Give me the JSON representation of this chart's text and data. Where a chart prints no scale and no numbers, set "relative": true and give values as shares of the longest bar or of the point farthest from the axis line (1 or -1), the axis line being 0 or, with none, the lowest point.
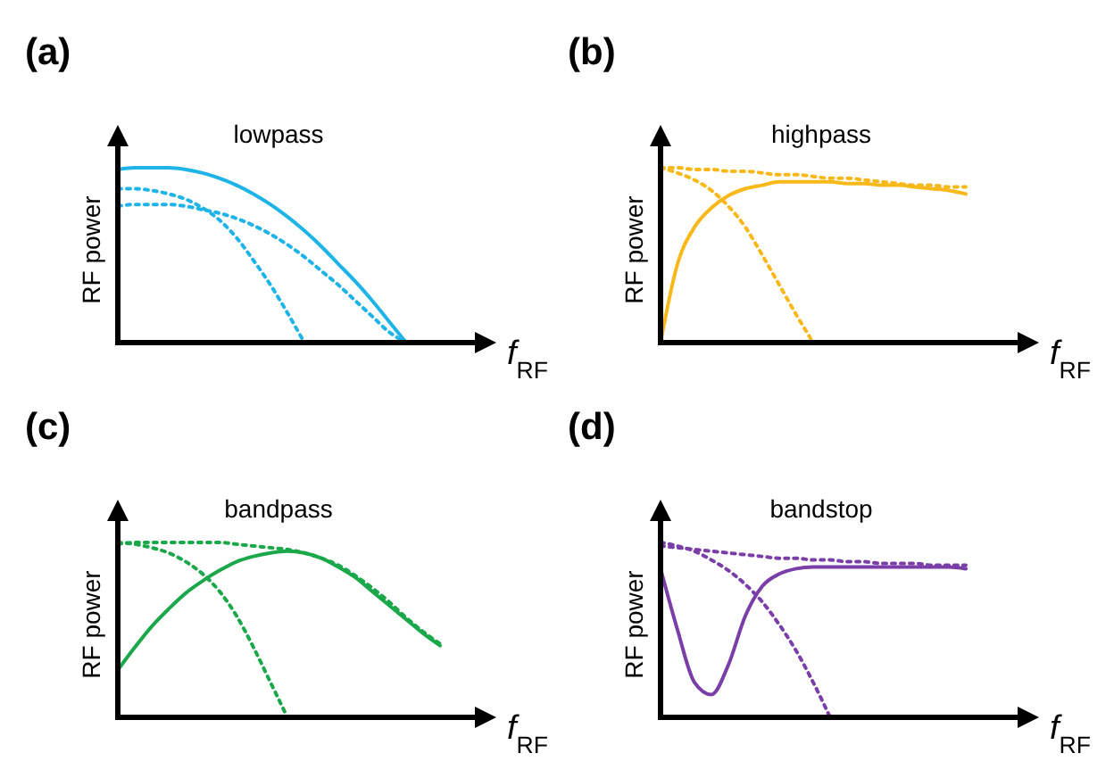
{
  "chart_data": [
    {
      "type": "line",
      "title": "lowpass",
      "xlabel": "f$_{RF}$",
      "ylabel": "RF power",
      "relative": true,
      "annotations": [
        "(a)"
      ],
      "categories": [
        null,
        null,
        null,
        null,
        null,
        null,
        null,
        null,
        null,
        null,
        null,
        null,
        null,
        null,
        null,
        null,
        null,
        null,
        null,
        null,
        null
      ],
      "series": [
        {
          "color": "#1fb4e8",
          "line_style": "solid",
          "values": [
            0.99,
            1,
            1,
            1,
            0.99,
            0.97,
            0.94,
            0.9,
            0.85,
            0.79,
            0.72,
            0.64,
            0.55,
            0.45,
            0.35,
            0.24,
            0.12,
            0,
            null,
            null,
            null
          ]
        },
        {
          "color": "#1fb4e8",
          "line_style": "dotted",
          "values": [
            0.88,
            0.88,
            0.87,
            0.85,
            0.82,
            0.77,
            0.7,
            0.6,
            0.47,
            0.33,
            0.17,
            0,
            null,
            null,
            null,
            null,
            null,
            null,
            null,
            null,
            null
          ]
        },
        {
          "color": "#1fb4e8",
          "line_style": "dotted",
          "values": [
            0.78,
            0.79,
            0.79,
            0.79,
            0.78,
            0.76,
            0.74,
            0.71,
            0.67,
            0.62,
            0.56,
            0.49,
            0.41,
            0.33,
            0.24,
            0.15,
            0.06,
            0,
            null,
            null,
            null
          ]
        }
      ]
    },
    {
      "type": "line",
      "title": "highpass",
      "xlabel": "f$_{RF}$",
      "ylabel": "RF power",
      "relative": true,
      "annotations": [
        "(b)"
      ],
      "categories": [
        null,
        null,
        null,
        null,
        null,
        null,
        null,
        null,
        null,
        null,
        null,
        null,
        null,
        null,
        null,
        null,
        null,
        null,
        null,
        null,
        null
      ],
      "series": [
        {
          "color": "#f7b81a",
          "line_style": "solid",
          "values": [
            0,
            0.45,
            0.66,
            0.77,
            0.84,
            0.88,
            0.9,
            0.92,
            0.92,
            0.92,
            0.92,
            0.91,
            0.91,
            0.9,
            0.9,
            0.89,
            0.88,
            0.87,
            0.85,
            null,
            null
          ]
        },
        {
          "color": "#f7b81a",
          "line_style": "dotted",
          "values": [
            1,
            0.97,
            0.93,
            0.87,
            0.78,
            0.66,
            0.5,
            0.33,
            0.16,
            0,
            null,
            null,
            null,
            null,
            null,
            null,
            null,
            null,
            null,
            null,
            null
          ]
        },
        {
          "color": "#f7b81a",
          "line_style": "dotted",
          "values": [
            1,
            1,
            0.99,
            0.99,
            0.98,
            0.98,
            0.97,
            0.96,
            0.96,
            0.95,
            0.94,
            0.94,
            0.93,
            0.92,
            0.91,
            0.9,
            0.9,
            0.89,
            0.89,
            null,
            null
          ]
        }
      ]
    },
    {
      "type": "line",
      "title": "bandpass",
      "xlabel": "f$_{RF}$",
      "ylabel": "RF power",
      "relative": true,
      "annotations": [
        "(c)"
      ],
      "categories": [
        null,
        null,
        null,
        null,
        null,
        null,
        null,
        null,
        null,
        null,
        null,
        null,
        null,
        null,
        null,
        null,
        null,
        null,
        null,
        null,
        null
      ],
      "series": [
        {
          "color": "#1aa84a",
          "line_style": "solid",
          "values": [
            0.27,
            0.4,
            0.52,
            0.62,
            0.71,
            0.78,
            0.84,
            0.89,
            0.92,
            0.94,
            0.95,
            0.94,
            0.91,
            0.86,
            0.8,
            0.72,
            0.64,
            0.56,
            0.48,
            0.41,
            null
          ]
        },
        {
          "color": "#1aa84a",
          "line_style": "dotted",
          "values": [
            1,
            0.99,
            0.97,
            0.94,
            0.89,
            0.82,
            0.72,
            0.58,
            0.4,
            0.2,
            0,
            null,
            null,
            null,
            null,
            null,
            null,
            null,
            null,
            null,
            null
          ]
        },
        {
          "color": "#1aa84a",
          "line_style": "dotted",
          "values": [
            0.99,
            1,
            1,
            1,
            1,
            1,
            1,
            0.99,
            0.98,
            0.97,
            0.96,
            0.94,
            0.91,
            0.87,
            0.81,
            0.74,
            0.66,
            0.57,
            0.49,
            0.42,
            null
          ]
        }
      ]
    },
    {
      "type": "line",
      "title": "bandstop",
      "xlabel": "f$_{RF}$",
      "ylabel": "RF power",
      "relative": true,
      "annotations": [
        "(d)"
      ],
      "categories": [
        null,
        null,
        null,
        null,
        null,
        null,
        null,
        null,
        null,
        null,
        null,
        null,
        null,
        null,
        null,
        null,
        null,
        null,
        null,
        null,
        null
      ],
      "series": [
        {
          "color": "#7a3ea8",
          "line_style": "solid",
          "values": [
            0.85,
            0.5,
            0.2,
            0.13,
            0.3,
            0.58,
            0.75,
            0.82,
            0.85,
            0.86,
            0.86,
            0.86,
            0.86,
            0.86,
            0.86,
            0.86,
            0.86,
            0.86,
            0.85,
            null,
            null
          ]
        },
        {
          "color": "#7a3ea8",
          "line_style": "dotted",
          "values": [
            1,
            0.98,
            0.95,
            0.9,
            0.84,
            0.76,
            0.66,
            0.53,
            0.38,
            0.2,
            0,
            null,
            null,
            null,
            null,
            null,
            null,
            null,
            null,
            null,
            null
          ]
        },
        {
          "color": "#7a3ea8",
          "line_style": "dotted",
          "values": [
            0.98,
            0.97,
            0.96,
            0.95,
            0.94,
            0.93,
            0.92,
            0.91,
            0.91,
            0.9,
            0.9,
            0.89,
            0.89,
            0.88,
            0.88,
            0.88,
            0.87,
            0.87,
            0.87,
            null,
            null
          ]
        }
      ]
    }
  ]
}
